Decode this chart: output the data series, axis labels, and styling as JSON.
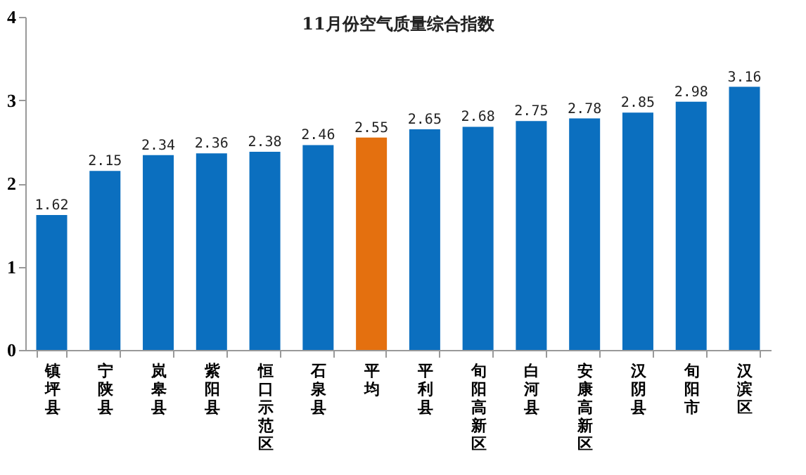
{
  "chart_data": {
    "type": "bar",
    "title": "11月份空气质量综合指数",
    "categories": [
      "镇坪县",
      "宁陕县",
      "岚皋县",
      "紫阳县",
      "恒口示范区",
      "石泉县",
      "平均",
      "平利县",
      "旬阳高新区",
      "白河县",
      "安康高新区",
      "汉阴县",
      "旬阳市",
      "汉滨区"
    ],
    "values": [
      1.62,
      2.15,
      2.34,
      2.36,
      2.38,
      2.46,
      2.55,
      2.65,
      2.68,
      2.75,
      2.78,
      2.85,
      2.98,
      3.16
    ],
    "colors": [
      "#0b6fbf",
      "#0b6fbf",
      "#0b6fbf",
      "#0b6fbf",
      "#0b6fbf",
      "#0b6fbf",
      "#e4700f",
      "#0b6fbf",
      "#0b6fbf",
      "#0b6fbf",
      "#0b6fbf",
      "#0b6fbf",
      "#0b6fbf",
      "#0b6fbf"
    ],
    "ylim": [
      0,
      4
    ],
    "yticks": [
      0,
      1,
      2,
      3,
      4
    ],
    "data_labels": true
  }
}
